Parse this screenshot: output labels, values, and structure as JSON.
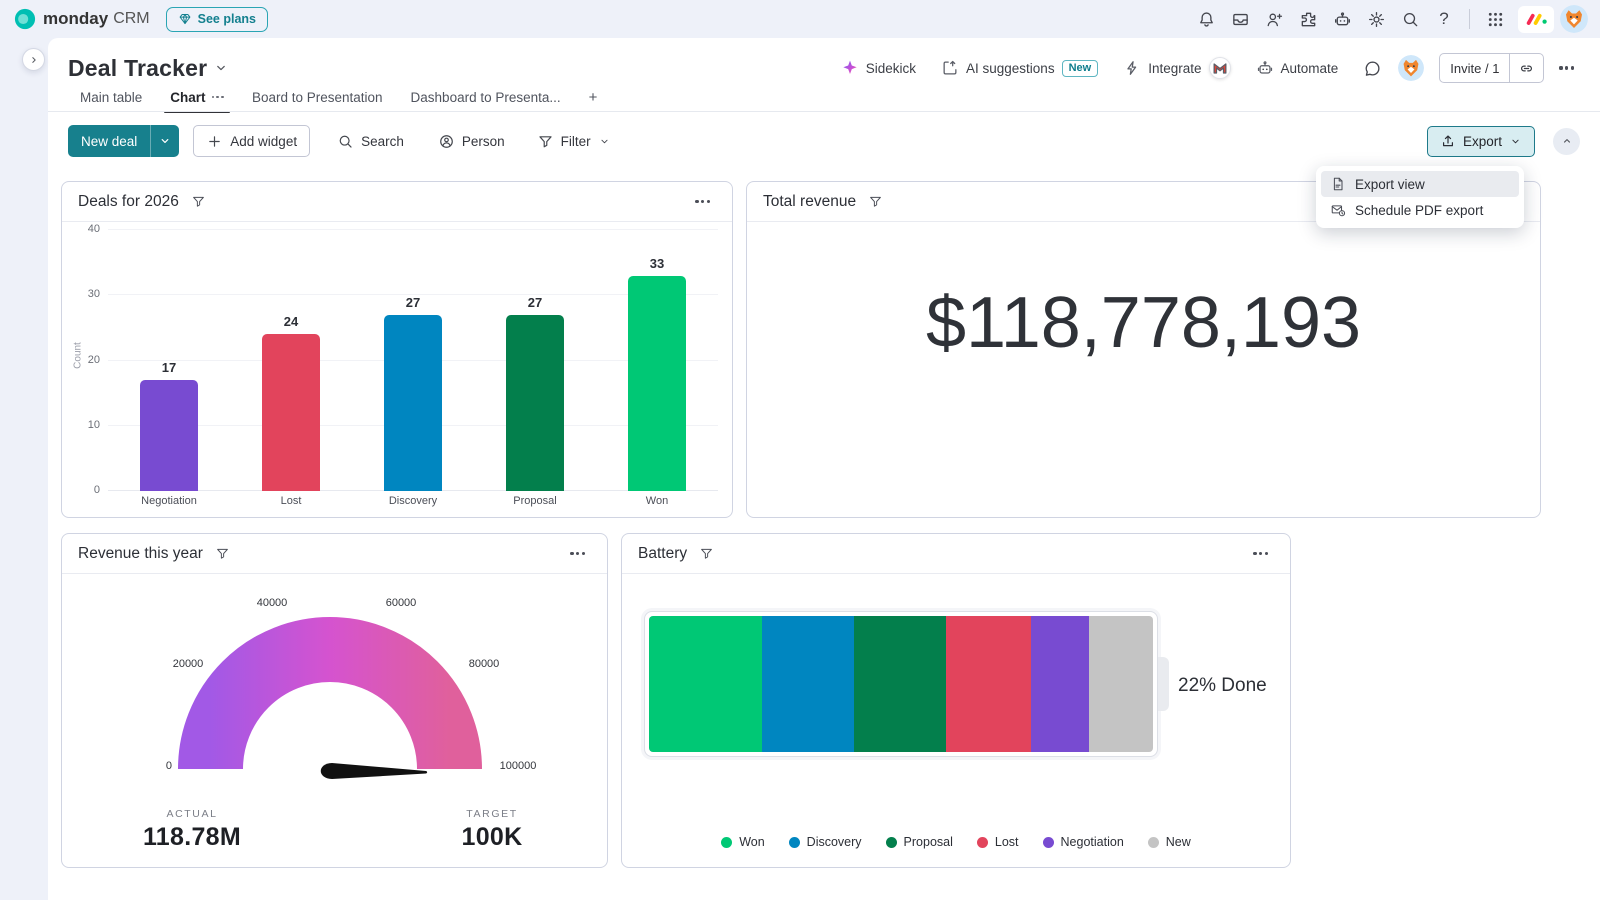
{
  "topbar": {
    "brand_bold": "monday",
    "brand_suffix": "CRM",
    "see_plans_label": "See plans",
    "help_glyph": "?"
  },
  "header": {
    "title": "Deal Tracker",
    "tabs": [
      {
        "label": "Main table",
        "active": false,
        "has_menu": false
      },
      {
        "label": "Chart",
        "active": true,
        "has_menu": true
      },
      {
        "label": "Board to Presentation",
        "active": false,
        "has_menu": false
      },
      {
        "label": "Dashboard to Presenta...",
        "active": false,
        "has_menu": false
      }
    ],
    "add_tab_label": "+",
    "actions": {
      "sidekick": "Sidekick",
      "ai_suggestions": "AI suggestions",
      "ai_new_badge": "New",
      "integrate": "Integrate",
      "automate": "Automate",
      "invite": "Invite / 1"
    }
  },
  "toolbar": {
    "new_deal_label": "New deal",
    "add_widget_label": "Add widget",
    "search_label": "Search",
    "person_label": "Person",
    "filter_label": "Filter",
    "export_label": "Export"
  },
  "export_menu": {
    "items": [
      {
        "label": "Export view",
        "icon": "pdf",
        "highlighted": true
      },
      {
        "label": "Schedule PDF export",
        "icon": "mailclock",
        "highlighted": false
      }
    ]
  },
  "colors": {
    "accent_teal": "#17808d",
    "won": "#00c875",
    "discovery": "#0086c0",
    "proposal": "#037f4c",
    "lost": "#e2445c",
    "negotiation": "#784bd1",
    "new": "#c4c4c4",
    "gauge_gradient": [
      "#a259e6",
      "#d553cf",
      "#e0609c"
    ]
  },
  "chart_data": [
    {
      "widget": "deals_for_2026",
      "type": "bar",
      "title": "Deals for 2026",
      "categories": [
        "Negotiation",
        "Lost",
        "Discovery",
        "Proposal",
        "Won"
      ],
      "values": [
        17,
        24,
        27,
        27,
        33
      ],
      "bar_colors": [
        "#784bd1",
        "#e2445c",
        "#0086c0",
        "#037f4c",
        "#00c875"
      ],
      "ylabel": "Count",
      "ylim": [
        0,
        40
      ],
      "yticks": [
        0,
        10,
        20,
        30,
        40
      ],
      "grid": true
    },
    {
      "widget": "total_revenue",
      "type": "number",
      "title": "Total revenue",
      "value": "$118,778,193"
    },
    {
      "widget": "revenue_this_year",
      "type": "gauge",
      "title": "Revenue this year",
      "range": [
        0,
        100000
      ],
      "ticks": [
        "0",
        "20000",
        "40000",
        "60000",
        "80000",
        "100000"
      ],
      "needle_at_max": true,
      "actual_label": "ACTUAL",
      "actual_value": "118.78M",
      "target_label": "TARGET",
      "target_value": "100K"
    },
    {
      "widget": "battery",
      "type": "battery",
      "title": "Battery",
      "done_text": "22% Done",
      "segments": [
        {
          "label": "Won",
          "pct": 22.5,
          "color": "#00c875"
        },
        {
          "label": "Discovery",
          "pct": 18.2,
          "color": "#0086c0"
        },
        {
          "label": "Proposal",
          "pct": 18.2,
          "color": "#037f4c"
        },
        {
          "label": "Lost",
          "pct": 16.8,
          "color": "#e2445c"
        },
        {
          "label": "Negotiation",
          "pct": 11.7,
          "color": "#784bd1"
        },
        {
          "label": "New",
          "pct": 12.6,
          "color": "#c4c4c4"
        }
      ]
    }
  ]
}
